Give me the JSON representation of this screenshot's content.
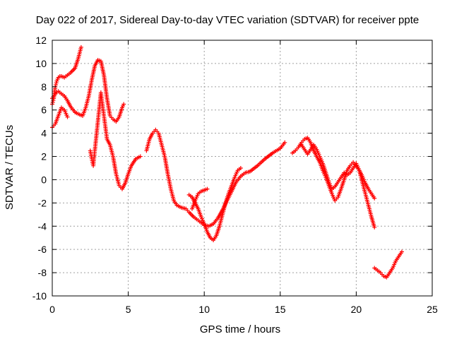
{
  "chart_data": {
    "type": "scatter",
    "title": "Day 022 of 2017, Sidereal Day-to-day VTEC variation (SDTVAR) for receiver ppte",
    "xlabel": "GPS time / hours",
    "ylabel": "SDTVAR / TECUs",
    "xlim": [
      0,
      25
    ],
    "ylim": [
      -10,
      12
    ],
    "xticks": [
      0,
      5,
      10,
      15,
      20,
      25
    ],
    "yticks": [
      -10,
      -8,
      -6,
      -4,
      -2,
      0,
      2,
      4,
      6,
      8,
      10,
      12
    ],
    "grid": true,
    "legend": "none",
    "marker": "+",
    "color": "#ff0000",
    "series": [
      {
        "x": [
          0.0,
          0.1,
          0.2,
          0.3,
          0.4,
          0.5,
          0.6,
          0.8,
          1.0,
          1.2,
          1.5,
          1.7,
          1.9
        ],
        "y": [
          6.5,
          7.0,
          8.0,
          8.5,
          8.8,
          8.9,
          8.9,
          8.8,
          9.0,
          9.2,
          9.6,
          10.4,
          11.4
        ]
      },
      {
        "x": [
          0.0,
          0.2,
          0.4,
          0.6,
          0.8,
          1.0,
          1.2,
          1.5,
          1.8,
          2.0,
          2.2,
          2.4,
          2.6,
          2.8,
          3.0,
          3.2,
          3.4,
          3.6,
          3.8,
          4.0,
          4.2,
          4.4,
          4.6,
          4.7
        ],
        "y": [
          7.0,
          7.4,
          7.6,
          7.4,
          7.2,
          6.8,
          6.3,
          5.8,
          5.6,
          5.5,
          6.2,
          7.2,
          8.6,
          9.8,
          10.3,
          10.2,
          9.0,
          7.0,
          5.5,
          5.2,
          5.0,
          5.4,
          6.2,
          6.5
        ]
      },
      {
        "x": [
          0.0,
          0.2,
          0.4,
          0.6,
          0.8,
          1.0
        ],
        "y": [
          4.5,
          4.8,
          5.5,
          6.2,
          6.0,
          5.4
        ]
      },
      {
        "x": [
          2.5,
          2.6,
          2.7,
          2.8,
          3.0,
          3.2,
          3.3,
          3.4,
          3.5,
          3.6,
          3.8,
          4.0,
          4.2,
          4.4,
          4.6,
          4.8,
          5.0,
          5.2,
          5.5,
          5.8
        ],
        "y": [
          2.5,
          1.8,
          1.2,
          2.5,
          5.0,
          7.5,
          6.5,
          5.5,
          4.5,
          3.5,
          3.0,
          2.0,
          0.5,
          -0.5,
          -0.8,
          -0.3,
          0.5,
          1.2,
          1.8,
          2.0
        ]
      },
      {
        "x": [
          6.2,
          6.4,
          6.6,
          6.8,
          7.0,
          7.2,
          7.4,
          7.6,
          7.8,
          8.0,
          8.2,
          8.5,
          8.8,
          9.0,
          9.3,
          9.6,
          9.8,
          10.0,
          10.3,
          10.6,
          10.9,
          11.2,
          11.5,
          11.8,
          12.1,
          12.4,
          12.7,
          13.0,
          13.5,
          14.0,
          14.5,
          15.0,
          15.3
        ],
        "y": [
          2.5,
          3.5,
          4.0,
          4.3,
          4.0,
          3.0,
          2.0,
          0.5,
          -0.8,
          -1.8,
          -2.2,
          -2.4,
          -2.5,
          -2.8,
          -3.2,
          -3.5,
          -3.7,
          -3.9,
          -4.0,
          -3.8,
          -3.3,
          -2.6,
          -1.8,
          -1.0,
          -0.2,
          0.3,
          0.6,
          0.7,
          1.2,
          1.8,
          2.3,
          2.7,
          3.2
        ]
      },
      {
        "x": [
          9.0,
          9.2,
          9.4,
          9.6,
          9.8,
          10.0,
          10.2,
          10.4,
          10.6,
          10.8,
          11.0,
          11.2,
          11.4,
          11.6,
          11.8,
          12.0,
          12.2,
          12.4
        ],
        "y": [
          -1.3,
          -1.5,
          -2.0,
          -2.5,
          -3.2,
          -3.8,
          -4.5,
          -5.0,
          -5.2,
          -4.8,
          -4.0,
          -3.0,
          -2.0,
          -1.2,
          -0.5,
          0.2,
          0.8,
          1.0
        ]
      },
      {
        "x": [
          9.2,
          9.4,
          9.6,
          9.8,
          10.0,
          10.2
        ],
        "y": [
          -2.5,
          -1.8,
          -1.2,
          -1.0,
          -0.9,
          -0.8
        ]
      },
      {
        "x": [
          15.8,
          16.0,
          16.2,
          16.4,
          16.6,
          16.8,
          17.0,
          17.2,
          17.4,
          17.6,
          17.8,
          18.0,
          18.2,
          18.4,
          18.6,
          18.8,
          19.0,
          19.2,
          19.4,
          19.6,
          19.8,
          20.0,
          20.2,
          20.4,
          20.6,
          20.8,
          21.0,
          21.2
        ],
        "y": [
          2.3,
          2.5,
          2.8,
          3.2,
          3.5,
          3.6,
          3.2,
          2.5,
          2.0,
          1.5,
          0.8,
          0.2,
          -0.5,
          -1.2,
          -1.8,
          -1.5,
          -0.8,
          0.0,
          0.8,
          1.2,
          1.5,
          1.2,
          0.8,
          0.3,
          -0.3,
          -0.8,
          -1.2,
          -1.6
        ]
      },
      {
        "x": [
          16.4,
          16.6,
          16.8,
          17.0,
          17.2,
          17.4,
          17.6,
          17.8,
          18.0,
          18.2,
          18.4,
          18.6,
          18.8,
          19.0,
          19.2,
          19.4,
          19.6,
          19.8,
          20.0,
          20.2,
          20.4,
          20.6,
          20.8,
          21.0,
          21.2
        ],
        "y": [
          3.0,
          2.6,
          2.2,
          2.6,
          3.0,
          2.6,
          2.0,
          1.4,
          0.6,
          -0.2,
          -0.8,
          -0.6,
          -0.2,
          0.2,
          0.6,
          0.4,
          0.6,
          1.0,
          1.4,
          0.8,
          -0.2,
          -1.2,
          -2.2,
          -3.2,
          -4.1
        ]
      },
      {
        "x": [
          21.2,
          21.4,
          21.6,
          21.8,
          22.0,
          22.2,
          22.4,
          22.6,
          22.8,
          23.0
        ],
        "y": [
          -7.6,
          -7.8,
          -8.0,
          -8.3,
          -8.4,
          -8.0,
          -7.6,
          -7.0,
          -6.6,
          -6.2
        ]
      }
    ]
  }
}
